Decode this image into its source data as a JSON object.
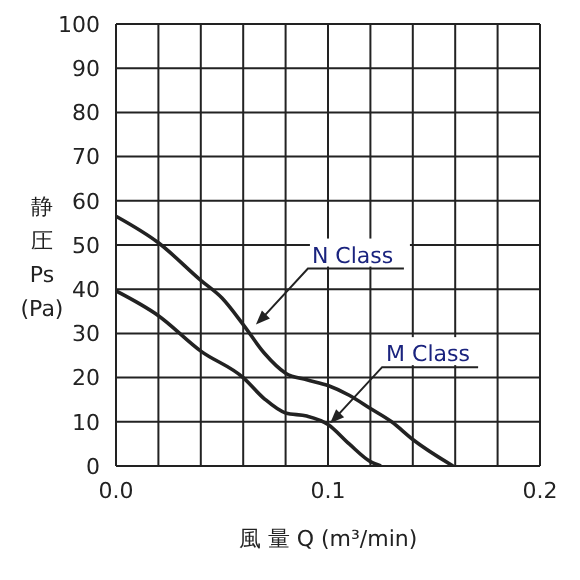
{
  "chart_data": {
    "type": "line",
    "xlabel": "風 量 Q (m³/min)",
    "ylabel": "静圧 Ps (Pa)",
    "xlim": [
      0,
      0.2
    ],
    "ylim": [
      0,
      100
    ],
    "xticks": [
      {
        "value": 0,
        "label": "0.0"
      },
      {
        "value": 0.02,
        "label": null
      },
      {
        "value": 0.04,
        "label": null
      },
      {
        "value": 0.06,
        "label": null
      },
      {
        "value": 0.08,
        "label": null
      },
      {
        "value": 0.1,
        "label": "0.1"
      },
      {
        "value": 0.12,
        "label": null
      },
      {
        "value": 0.14,
        "label": null
      },
      {
        "value": 0.16,
        "label": null
      },
      {
        "value": 0.18,
        "label": null
      },
      {
        "value": 0.2,
        "label": "0.2"
      }
    ],
    "yticks": [
      0,
      10,
      20,
      30,
      40,
      50,
      60,
      70,
      80,
      90,
      100
    ],
    "grid": true,
    "legend": false,
    "marker": "none",
    "line_style": "solid",
    "series": [
      {
        "color": "#222222",
        "x": [
          0,
          0.02,
          0.04,
          0.05,
          0.06,
          0.07,
          0.08,
          0.09,
          0.1,
          0.11,
          0.12,
          0.13,
          0.14,
          0.159
        ],
        "values": [
          56.5,
          50.5,
          42,
          38,
          32,
          25.5,
          21,
          19.5,
          18.2,
          16,
          13,
          10,
          6,
          0
        ]
      },
      {
        "color": "#222222",
        "x": [
          0,
          0.02,
          0.04,
          0.06,
          0.07,
          0.08,
          0.09,
          0.1,
          0.11,
          0.12,
          0.125
        ],
        "values": [
          39.6,
          34,
          26,
          20,
          15.2,
          12,
          11.3,
          9.4,
          5,
          1,
          0
        ]
      }
    ],
    "annotations": [
      {
        "text": "N Class",
        "x": 0.066,
        "y": 32
      },
      {
        "text": "M Class",
        "x": 0.101,
        "y": 9.7
      }
    ]
  }
}
